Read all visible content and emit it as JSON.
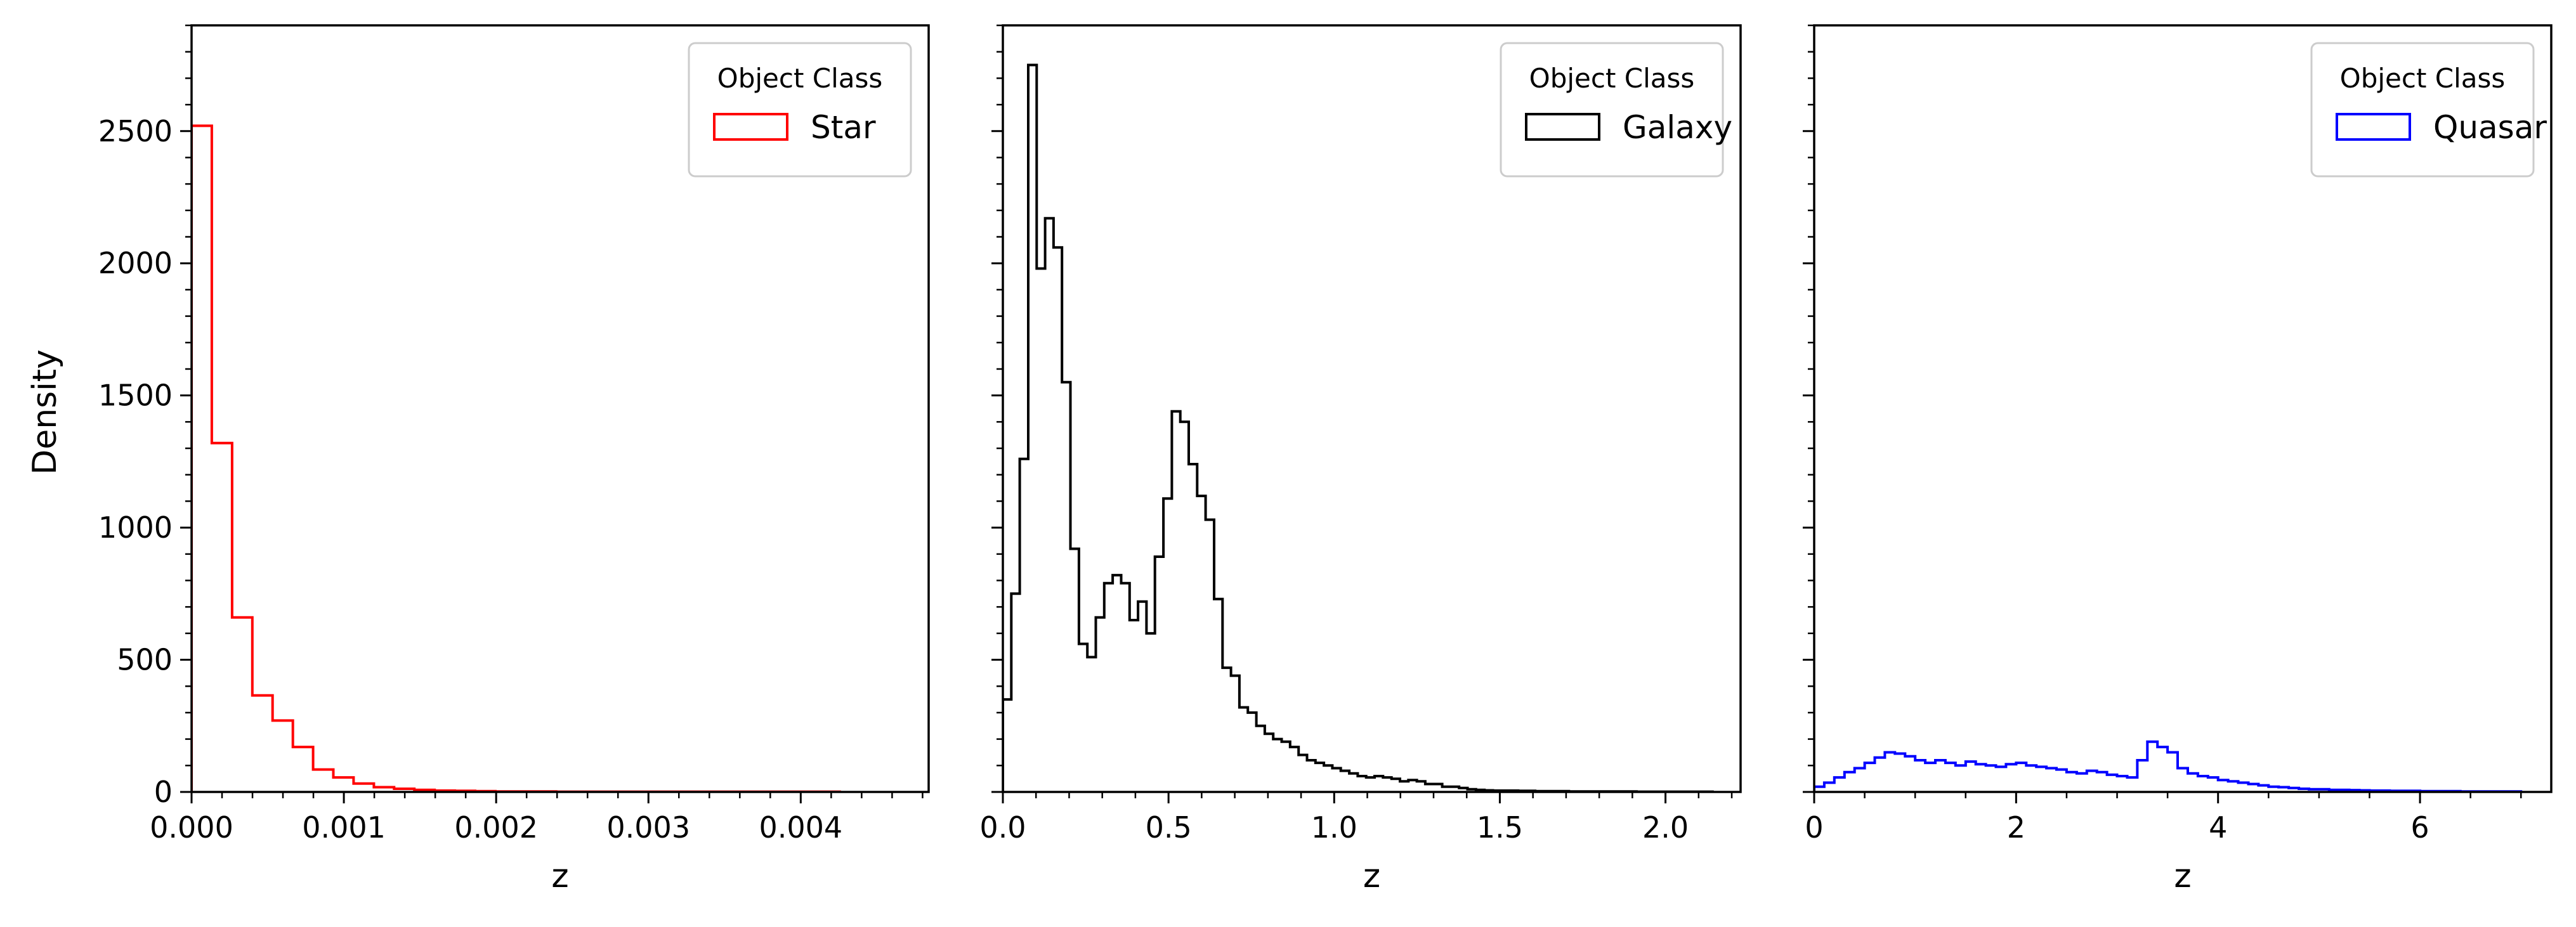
{
  "figure": {
    "ylabel": "Density"
  },
  "chart_data": [
    {
      "type": "histogram",
      "xlabel": "z",
      "ylabel": "Density",
      "xlim": [
        0,
        0.00484
      ],
      "ylim": [
        0,
        2900
      ],
      "xticks": [
        0,
        0.001,
        0.002,
        0.003,
        0.004
      ],
      "xtick_labels": [
        "0.000",
        "0.001",
        "0.002",
        "0.003",
        "0.004"
      ],
      "yticks": [
        0,
        500,
        1000,
        1500,
        2000,
        2500
      ],
      "ytick_labels": [
        "0",
        "500",
        "1000",
        "1500",
        "2000",
        "2500"
      ],
      "y_minor_step": 100,
      "x_minor_step": 0.0002,
      "bin_start": 0,
      "bin_width": 0.000133,
      "values": [
        2520,
        1320,
        660,
        365,
        270,
        170,
        85,
        55,
        32,
        18,
        12,
        8,
        5,
        4,
        3,
        2,
        2,
        2,
        1,
        1,
        1,
        1,
        1,
        1,
        1,
        1,
        1,
        1,
        1,
        1,
        1,
        1
      ],
      "color": "#ff0000",
      "legend": {
        "title": "Object Class",
        "position": "upper right",
        "entries": [
          {
            "label": "Star",
            "color": "#ff0000"
          }
        ]
      }
    },
    {
      "type": "histogram",
      "xlabel": "z",
      "xlim": [
        0,
        2.2267
      ],
      "ylim": [
        0,
        2900
      ],
      "xticks": [
        0,
        0.5,
        1.0,
        1.5,
        2.0
      ],
      "xtick_labels": [
        "0.0",
        "0.5",
        "1.0",
        "1.5",
        "2.0"
      ],
      "yticks": [
        0,
        500,
        1000,
        1500,
        2000,
        2500
      ],
      "ytick_labels": [],
      "y_minor_step": 100,
      "x_minor_step": 0.1,
      "bin_start": 0,
      "bin_width": 0.0255,
      "values": [
        350,
        750,
        1260,
        2750,
        1980,
        2170,
        2060,
        1550,
        920,
        560,
        510,
        660,
        790,
        820,
        790,
        650,
        720,
        600,
        890,
        1110,
        1440,
        1400,
        1240,
        1120,
        1030,
        730,
        470,
        440,
        320,
        300,
        250,
        220,
        200,
        190,
        170,
        140,
        120,
        110,
        100,
        90,
        80,
        70,
        60,
        55,
        60,
        55,
        50,
        40,
        45,
        40,
        30,
        30,
        20,
        20,
        15,
        10,
        8,
        6,
        5,
        5,
        5,
        4,
        4,
        3,
        3,
        3,
        3,
        2,
        2,
        2,
        2,
        2,
        2,
        2,
        2,
        1,
        1,
        1,
        1,
        1,
        1,
        1,
        1,
        1
      ],
      "color": "#000000",
      "legend": {
        "title": "Object Class",
        "position": "upper right",
        "entries": [
          {
            "label": "Galaxy",
            "color": "#000000"
          }
        ]
      }
    },
    {
      "type": "histogram",
      "xlabel": "z",
      "xlim": [
        0,
        7.3
      ],
      "ylim": [
        0,
        2900
      ],
      "xticks": [
        0,
        2,
        4,
        6
      ],
      "xtick_labels": [
        "0",
        "2",
        "4",
        "6"
      ],
      "yticks": [
        0,
        500,
        1000,
        1500,
        2000,
        2500
      ],
      "ytick_labels": [],
      "y_minor_step": 100,
      "x_minor_step": 0.5,
      "bin_start": 0,
      "bin_width": 0.1,
      "values": [
        20,
        35,
        55,
        75,
        90,
        110,
        130,
        150,
        145,
        135,
        120,
        110,
        120,
        110,
        100,
        115,
        105,
        100,
        95,
        105,
        110,
        100,
        95,
        90,
        85,
        75,
        70,
        80,
        75,
        65,
        60,
        55,
        120,
        190,
        170,
        150,
        90,
        70,
        60,
        55,
        45,
        40,
        35,
        30,
        25,
        20,
        18,
        15,
        12,
        10,
        10,
        8,
        8,
        7,
        6,
        5,
        5,
        4,
        4,
        4,
        3,
        3,
        3,
        3,
        2,
        2,
        2,
        2,
        2,
        2
      ],
      "color": "#0000ff",
      "legend": {
        "title": "Object Class",
        "position": "upper right",
        "entries": [
          {
            "label": "Quasar",
            "color": "#0000ff"
          }
        ]
      }
    }
  ]
}
